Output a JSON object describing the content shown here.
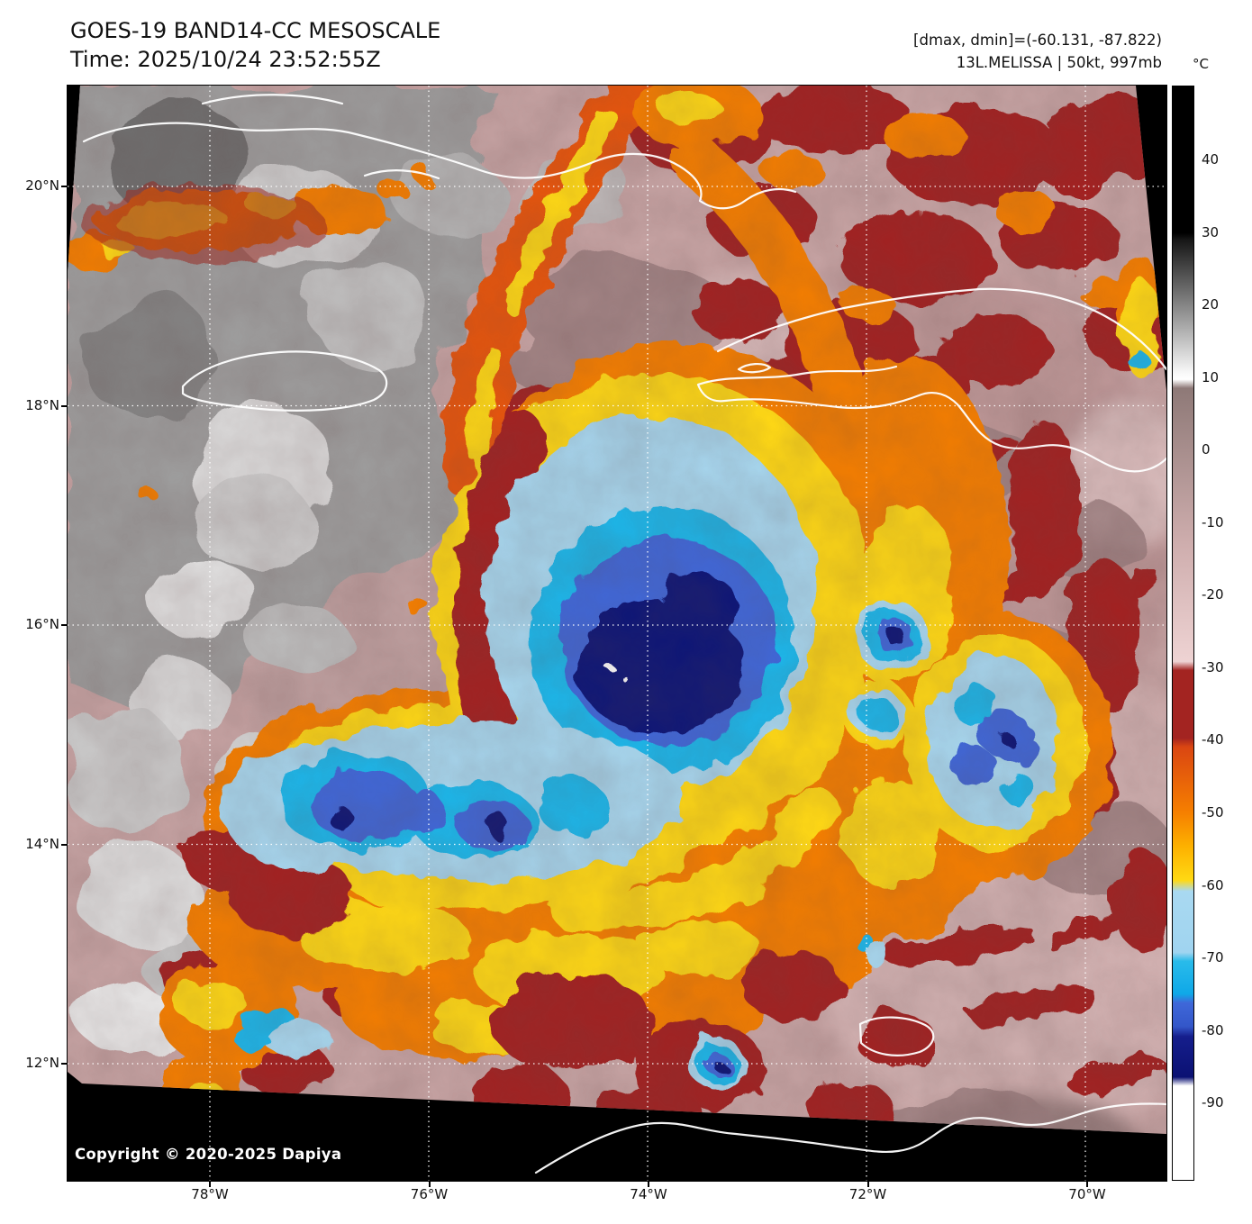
{
  "header": {
    "title": "GOES-19 BAND14-CC MESOSCALE",
    "time": "Time: 2025/10/24 23:52:55Z",
    "dmax_dmin": "[dmax, dmin]=(-60.131, -87.822)",
    "storm_label": "13L.MELISSA | 50kt, 997mb",
    "storm": {
      "id": "13L",
      "name": "MELISSA",
      "wind": "50kt",
      "pressure": "997mb"
    },
    "dmax": -60.131,
    "dmin": -87.822
  },
  "colorbar": {
    "unit_label": "°C",
    "tick_values": [
      40,
      30,
      20,
      10,
      0,
      -10,
      -20,
      -30,
      -40,
      -50,
      -60,
      -70,
      -80,
      -90
    ],
    "palette": {
      "hot_black": "#000000",
      "gray_cloud": "#9f9f9f",
      "warm_base": "#c9a6a6",
      "pink_light": "#eed3d3",
      "dark_red": "#a32421",
      "orange": "#f67f00",
      "yellow": "#ffd913",
      "light_blue": "#a8d8f0",
      "cyan": "#1fb8ec",
      "blue": "#3f68d9",
      "navy": "#0c1478",
      "coldest_white": "#ffffff"
    }
  },
  "axes": {
    "lat_labels": [
      "20°N",
      "18°N",
      "16°N",
      "14°N",
      "12°N"
    ],
    "lon_labels": [
      "78°W",
      "76°W",
      "74°W",
      "72°W",
      "70°W"
    ],
    "lat_range_shown": [
      12,
      20
    ],
    "lon_range_shown": [
      78,
      70
    ]
  },
  "footer": {
    "copyright": "Copyright © 2020-2025 Dapiya"
  }
}
